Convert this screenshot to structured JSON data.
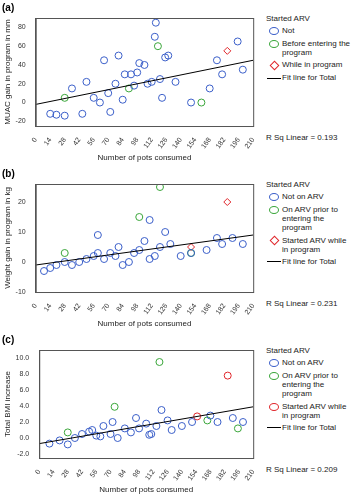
{
  "chart_data": [
    {
      "type": "scatter",
      "title": "(a)",
      "x_label": "Number of pots consumed",
      "y_label": "MUAC gain in program in mm",
      "legend_title": "Started ARV",
      "annotation": "R Sq Linear = 0.193",
      "legend": "right",
      "grid": false,
      "xlim": [
        0,
        210
      ],
      "xticks": [
        0,
        14,
        28,
        42,
        56,
        70,
        84,
        98,
        112,
        126,
        140,
        154,
        168,
        182,
        196,
        210
      ],
      "ylim": [
        -25,
        90
      ],
      "yticks": [
        -20,
        0,
        20,
        40,
        60,
        80
      ],
      "series": [
        {
          "name": "Not",
          "color": "#3b5fc9",
          "marker": "circle",
          "x": [
            14,
            20,
            28,
            35,
            45,
            49,
            56,
            62,
            66,
            70,
            72,
            77,
            80,
            84,
            86,
            92,
            95,
            98,
            100,
            105,
            108,
            112,
            115,
            116,
            120,
            122,
            125,
            128,
            135,
            150,
            168,
            175,
            180,
            195,
            200
          ],
          "values": [
            -12,
            -13,
            -14,
            15,
            -12,
            22,
            5,
            0,
            45,
            10,
            -10,
            20,
            50,
            3,
            30,
            30,
            18,
            32,
            42,
            40,
            20,
            22,
            70,
            85,
            25,
            5,
            48,
            50,
            22,
            0,
            15,
            45,
            30,
            65,
            35
          ]
        },
        {
          "name": "Before entering the program",
          "color": "#3aa63a",
          "marker": "circle",
          "x": [
            28,
            90,
            118,
            160
          ],
          "values": [
            5,
            15,
            60,
            0
          ]
        },
        {
          "name": "While in program",
          "color": "#e0262b",
          "marker": "diamond",
          "x": [
            185
          ],
          "values": [
            55
          ]
        },
        {
          "name": "Fit line for Total",
          "color": "#000000",
          "type": "line",
          "line_style": "solid",
          "x": [
            0,
            210
          ],
          "values": [
            -2,
            45
          ]
        }
      ]
    },
    {
      "type": "scatter",
      "title": "(b)",
      "x_label": "Number of pots consumed",
      "y_label": "Weight gain in program in kg",
      "legend_title": "Started ARV",
      "annotation": "R Sq Linear = 0.231",
      "legend": "right",
      "grid": false,
      "xlim": [
        0,
        210
      ],
      "xticks": [
        0,
        14,
        28,
        42,
        56,
        70,
        84,
        98,
        112,
        126,
        140,
        154,
        168,
        182,
        196,
        210
      ],
      "ylim": [
        -10,
        26
      ],
      "yticks": [
        -10,
        0,
        10,
        20
      ],
      "series": [
        {
          "name": "Not on ARV",
          "color": "#3b5fc9",
          "marker": "circle",
          "x": [
            8,
            14,
            20,
            28,
            35,
            42,
            49,
            56,
            60,
            66,
            72,
            77,
            80,
            84,
            90,
            95,
            100,
            105,
            110,
            115,
            120,
            125,
            130,
            140,
            150,
            165,
            175,
            180,
            190,
            200,
            60,
            110
          ],
          "values": [
            -3,
            -2,
            -1,
            0,
            -1,
            0,
            1,
            2,
            3,
            1,
            3,
            2,
            5,
            -1,
            0,
            3,
            4,
            7,
            1,
            2,
            5,
            10,
            6,
            2,
            3,
            4,
            8,
            6,
            8,
            6,
            9,
            14
          ]
        },
        {
          "name": "On ARV prior to entering the program",
          "color": "#3aa63a",
          "marker": "circle",
          "x": [
            28,
            100,
            120,
            150
          ],
          "values": [
            3,
            15,
            25,
            3
          ]
        },
        {
          "name": "Started ARV while in program",
          "color": "#e0262b",
          "marker": "diamond",
          "x": [
            185,
            150
          ],
          "values": [
            20,
            5
          ]
        },
        {
          "name": "Fit line for Total",
          "color": "#000000",
          "type": "line",
          "line_style": "solid",
          "x": [
            0,
            210
          ],
          "values": [
            -1,
            9
          ]
        }
      ]
    },
    {
      "type": "scatter",
      "title": "(c)",
      "x_label": "Number of pots consumed",
      "y_label": "Total BMI increase",
      "legend_title": "Started ARV",
      "annotation": "R Sq Linear = 0.209",
      "legend": "right",
      "grid": false,
      "xlim": [
        0,
        210
      ],
      "xticks": [
        0,
        14,
        28,
        42,
        56,
        70,
        84,
        98,
        112,
        126,
        140,
        154,
        168,
        182,
        196,
        210
      ],
      "ylim": [
        -2.5,
        11
      ],
      "yticks": [
        {
          "value": -2,
          "label": "-2.0"
        },
        {
          "value": 0,
          "label": "0.0"
        },
        {
          "value": 2,
          "label": "2.0"
        },
        {
          "value": 4,
          "label": "4.0"
        },
        {
          "value": 6,
          "label": "6.0"
        },
        {
          "value": 8,
          "label": "8.0"
        },
        {
          "value": 10,
          "label": "10.0"
        }
      ],
      "series": [
        {
          "name": "Not on ARV",
          "color": "#3b5fc9",
          "marker": "circle",
          "x": [
            10,
            20,
            28,
            35,
            42,
            49,
            52,
            56,
            63,
            70,
            72,
            77,
            84,
            90,
            95,
            98,
            105,
            110,
            115,
            120,
            126,
            130,
            140,
            150,
            168,
            175,
            190,
            200,
            60,
            108
          ],
          "values": [
            -0.7,
            -0.3,
            -0.8,
            0,
            0.5,
            0.8,
            1.0,
            0.3,
            1.5,
            0.5,
            2.0,
            0,
            1.2,
            0.7,
            2.5,
            1.2,
            1.8,
            0.5,
            1.5,
            3.5,
            2.2,
            1.0,
            1.5,
            2.0,
            2.8,
            2.0,
            2.5,
            2.0,
            0.2,
            0.4
          ]
        },
        {
          "name": "On ARV prior to entering the program",
          "color": "#3aa63a",
          "marker": "circle",
          "x": [
            28,
            74,
            118,
            165,
            195
          ],
          "values": [
            0.7,
            3.9,
            9.5,
            2.2,
            1.2
          ]
        },
        {
          "name": "Started ARV while in program",
          "color": "#e0262b",
          "marker": "circle",
          "x": [
            155,
            185
          ],
          "values": [
            2.7,
            7.8
          ]
        },
        {
          "name": "Fit line for Total",
          "color": "#000000",
          "type": "line",
          "line_style": "solid",
          "x": [
            0,
            210
          ],
          "values": [
            -0.7,
            3.9
          ]
        }
      ]
    }
  ]
}
